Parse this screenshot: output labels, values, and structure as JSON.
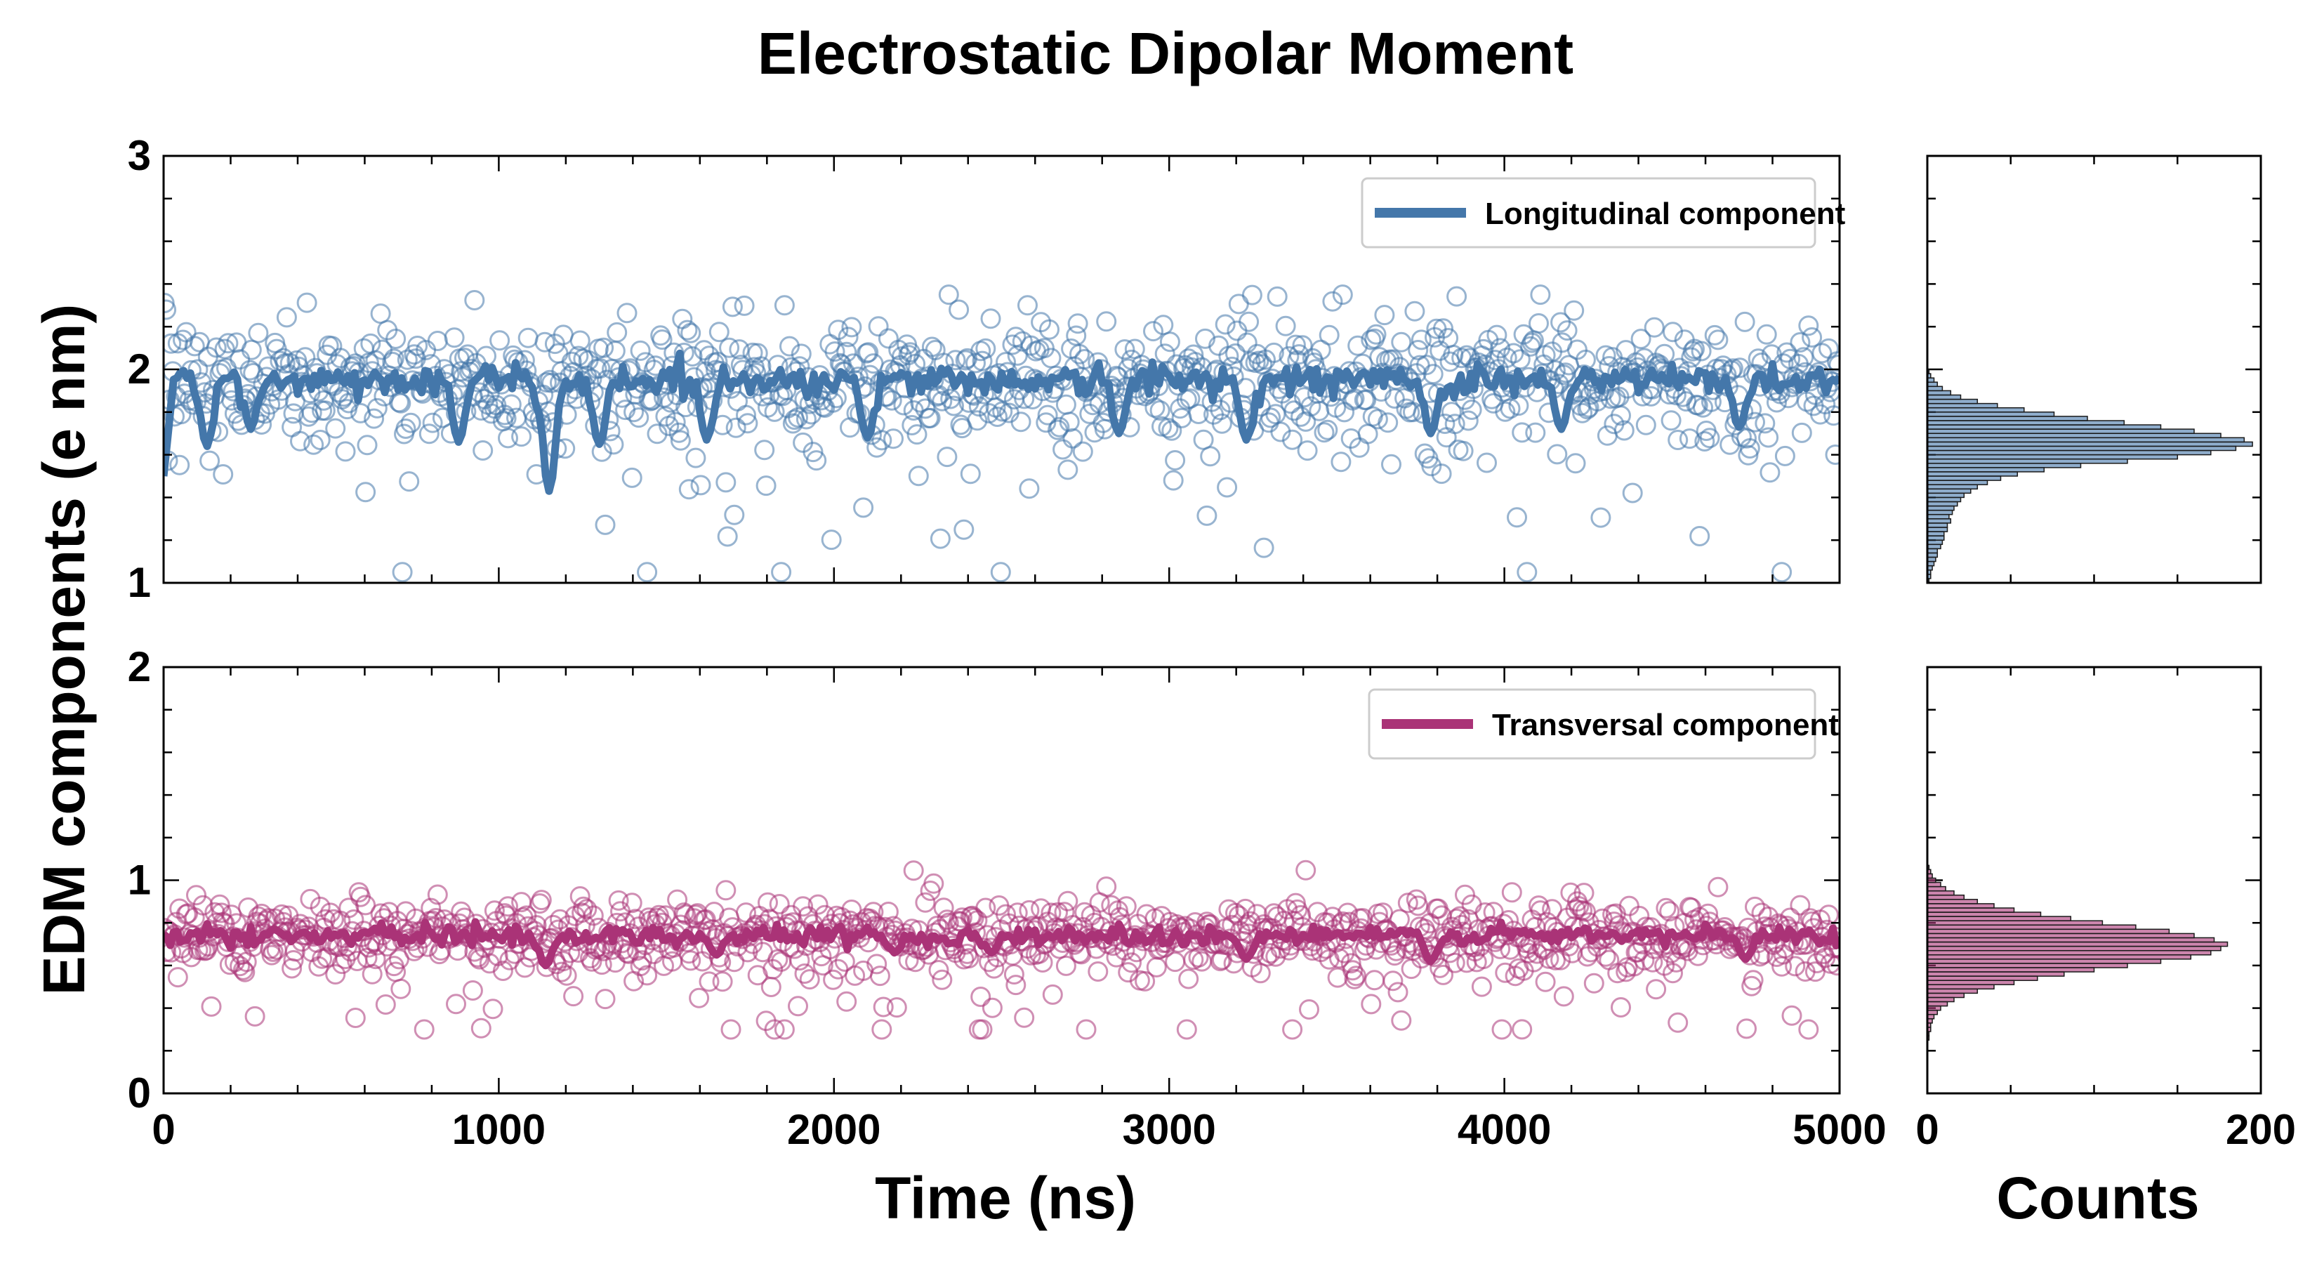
{
  "chart_data": {
    "type": "scatter",
    "title": "Electrostatic Dipolar Moment",
    "ylabel": "EDM components (e nm)",
    "panels": [
      {
        "id": "longitudinal",
        "series_name": "Longitudinal component",
        "color": "#4477aa",
        "xlim": [
          0,
          5000
        ],
        "ylim": [
          1,
          3
        ],
        "yticks": [
          "1",
          "2",
          "3"
        ],
        "mean": 1.95,
        "spread": 0.13,
        "outlier_low": 1.05,
        "outlier_high": 2.35,
        "smoothed_dips": [
          {
            "x": 130,
            "y": 1.64
          },
          {
            "x": 260,
            "y": 1.72
          },
          {
            "x": 880,
            "y": 1.66
          },
          {
            "x": 1150,
            "y": 1.43
          },
          {
            "x": 1300,
            "y": 1.65
          },
          {
            "x": 1620,
            "y": 1.67
          },
          {
            "x": 2100,
            "y": 1.68
          },
          {
            "x": 2850,
            "y": 1.7
          },
          {
            "x": 3230,
            "y": 1.67
          },
          {
            "x": 3780,
            "y": 1.7
          },
          {
            "x": 4170,
            "y": 1.72
          },
          {
            "x": 4700,
            "y": 1.73
          }
        ],
        "histogram": {
          "bin_start": 1.0,
          "bin_width": 0.02,
          "counts": [
            1,
            2,
            2,
            3,
            4,
            5,
            6,
            6,
            8,
            9,
            10,
            10,
            12,
            12,
            14,
            13,
            15,
            16,
            18,
            20,
            22,
            26,
            30,
            36,
            44,
            54,
            70,
            92,
            120,
            150,
            170,
            185,
            195,
            190,
            176,
            160,
            140,
            118,
            96,
            76,
            58,
            42,
            30,
            20,
            14,
            9,
            6,
            4,
            2,
            1
          ]
        }
      },
      {
        "id": "transversal",
        "series_name": "Transversal component",
        "color": "#aa3377",
        "xlim": [
          0,
          5000
        ],
        "ylim": [
          0,
          2
        ],
        "yticks": [
          "0",
          "1",
          "2"
        ],
        "mean": 0.74,
        "spread": 0.08,
        "outlier_low": 0.3,
        "outlier_high": 1.05,
        "smoothed_dips": [
          {
            "x": 1140,
            "y": 0.6
          },
          {
            "x": 1650,
            "y": 0.65
          },
          {
            "x": 2180,
            "y": 0.66
          },
          {
            "x": 2470,
            "y": 0.66
          },
          {
            "x": 3230,
            "y": 0.63
          },
          {
            "x": 3780,
            "y": 0.62
          },
          {
            "x": 4720,
            "y": 0.63
          }
        ],
        "histogram": {
          "bin_start": 0.25,
          "bin_width": 0.02,
          "counts": [
            1,
            1,
            2,
            2,
            3,
            4,
            6,
            8,
            12,
            16,
            22,
            30,
            40,
            52,
            66,
            82,
            100,
            120,
            140,
            158,
            170,
            176,
            180,
            172,
            160,
            145,
            125,
            105,
            86,
            68,
            52,
            40,
            30,
            22,
            16,
            11,
            8,
            5,
            3,
            2,
            1
          ]
        }
      }
    ],
    "time_axis": {
      "label": "Time (ns)",
      "ticks": [
        "0",
        "1000",
        "2000",
        "3000",
        "4000",
        "5000"
      ]
    },
    "hist_axis": {
      "label": "Counts",
      "xlim": [
        0,
        200
      ],
      "ticks": [
        "0",
        "200"
      ]
    },
    "points_per_series": 1000
  }
}
